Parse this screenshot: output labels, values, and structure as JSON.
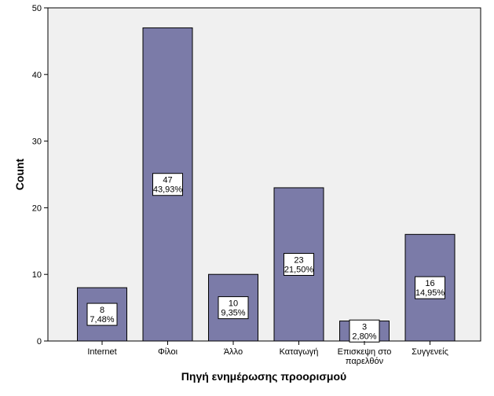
{
  "chart_data": {
    "type": "bar",
    "title": "",
    "xlabel": "Πηγή ενημέρωσης προορισμού",
    "ylabel": "Count",
    "categories": [
      [
        "Internet"
      ],
      [
        "Φίλοι"
      ],
      [
        "Άλλο"
      ],
      [
        "Καταγωγή"
      ],
      [
        "Επισκεψη στο",
        "παρελθόν"
      ],
      [
        "Συγγενείς"
      ]
    ],
    "values": [
      8,
      47,
      10,
      23,
      3,
      16
    ],
    "percent_labels": [
      "7,48%",
      "43,93%",
      "9,35%",
      "21,50%",
      "2,80%",
      "14,95%"
    ],
    "ylim": [
      0,
      50
    ],
    "yticks": [
      0,
      10,
      20,
      30,
      40,
      50
    ],
    "grid": false,
    "colors": {
      "bar_fill": "#7B7BA8",
      "bar_stroke": "#000000",
      "plot_background": "#F0F0F0",
      "label_box_fill": "#FFFFFF"
    }
  }
}
